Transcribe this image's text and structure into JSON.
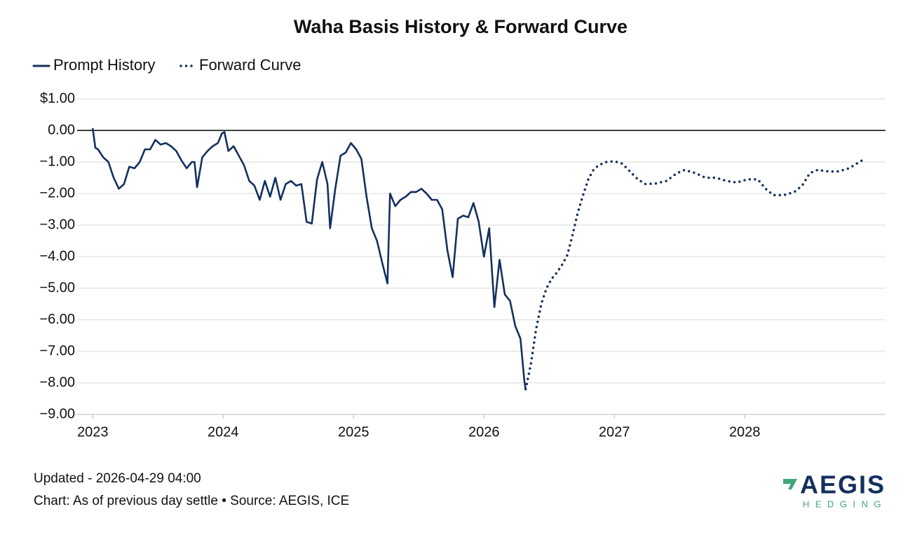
{
  "chart_data": {
    "type": "line",
    "title": "Waha Basis History & Forward Curve",
    "xlim": [
      2022.88,
      2029.08
    ],
    "xticks": [
      2023,
      2024,
      2025,
      2026,
      2027,
      2028
    ],
    "ylim": [
      -9,
      1
    ],
    "yticks": [
      {
        "value": -9,
        "label": "−9.00"
      },
      {
        "value": -8,
        "label": "−8.00"
      },
      {
        "value": -7,
        "label": "−7.00"
      },
      {
        "value": -6,
        "label": "−6.00"
      },
      {
        "value": -5,
        "label": "−5.00"
      },
      {
        "value": -4,
        "label": "−4.00"
      },
      {
        "value": -3,
        "label": "−3.00"
      },
      {
        "value": -2,
        "label": "−2.00"
      },
      {
        "value": -1,
        "label": "−1.00"
      },
      {
        "value": 0,
        "label": "0.00"
      },
      {
        "value": 1,
        "label": "$1.00"
      }
    ],
    "grid": true,
    "zero_line": true,
    "legend": "top-left",
    "series": [
      {
        "name": "Prompt History",
        "color": "#14305e",
        "style": "solid",
        "x": [
          2023.0,
          2023.02,
          2023.04,
          2023.08,
          2023.12,
          2023.16,
          2023.2,
          2023.24,
          2023.28,
          2023.32,
          2023.36,
          2023.4,
          2023.44,
          2023.48,
          2023.52,
          2023.56,
          2023.6,
          2023.64,
          2023.68,
          2023.72,
          2023.76,
          2023.78,
          2023.8,
          2023.84,
          2023.88,
          2023.92,
          2023.96,
          2023.99,
          2024.01,
          2024.04,
          2024.08,
          2024.12,
          2024.16,
          2024.2,
          2024.24,
          2024.28,
          2024.32,
          2024.36,
          2024.4,
          2024.44,
          2024.48,
          2024.52,
          2024.56,
          2024.6,
          2024.64,
          2024.68,
          2024.72,
          2024.76,
          2024.8,
          2024.82,
          2024.86,
          2024.9,
          2024.94,
          2024.98,
          2025.02,
          2025.06,
          2025.1,
          2025.14,
          2025.18,
          2025.22,
          2025.26,
          2025.28,
          2025.32,
          2025.36,
          2025.4,
          2025.44,
          2025.48,
          2025.52,
          2025.56,
          2025.6,
          2025.64,
          2025.68,
          2025.72,
          2025.76,
          2025.8,
          2025.84,
          2025.88,
          2025.92,
          2025.96,
          2026.0,
          2026.04,
          2026.08,
          2026.12,
          2026.16,
          2026.2,
          2026.24,
          2026.28,
          2026.31,
          2026.32
        ],
        "values": [
          0.05,
          -0.55,
          -0.6,
          -0.85,
          -1.0,
          -1.5,
          -1.85,
          -1.7,
          -1.15,
          -1.2,
          -1.0,
          -0.6,
          -0.6,
          -0.3,
          -0.45,
          -0.4,
          -0.5,
          -0.65,
          -0.95,
          -1.2,
          -1.0,
          -1.0,
          -1.8,
          -0.85,
          -0.65,
          -0.5,
          -0.4,
          -0.1,
          -0.05,
          -0.65,
          -0.5,
          -0.8,
          -1.1,
          -1.6,
          -1.75,
          -2.2,
          -1.6,
          -2.1,
          -1.5,
          -2.2,
          -1.7,
          -1.6,
          -1.75,
          -1.7,
          -2.9,
          -2.95,
          -1.55,
          -1.0,
          -1.7,
          -3.1,
          -1.85,
          -0.8,
          -0.7,
          -0.4,
          -0.6,
          -0.9,
          -2.1,
          -3.1,
          -3.5,
          -4.2,
          -4.85,
          -2.0,
          -2.4,
          -2.2,
          -2.1,
          -1.95,
          -1.95,
          -1.85,
          -2.0,
          -2.2,
          -2.2,
          -2.5,
          -3.8,
          -4.65,
          -2.8,
          -2.7,
          -2.75,
          -2.3,
          -2.9,
          -4.0,
          -3.1,
          -5.6,
          -4.1,
          -5.2,
          -5.4,
          -6.2,
          -6.6,
          -7.95,
          -8.2
        ]
      },
      {
        "name": "Forward Curve",
        "color": "#14305e",
        "style": "dotted",
        "x": [
          2026.32,
          2026.36,
          2026.4,
          2026.44,
          2026.48,
          2026.52,
          2026.56,
          2026.6,
          2026.64,
          2026.68,
          2026.72,
          2026.76,
          2026.8,
          2026.84,
          2026.88,
          2026.94,
          2027.0,
          2027.06,
          2027.12,
          2027.18,
          2027.24,
          2027.32,
          2027.4,
          2027.48,
          2027.54,
          2027.62,
          2027.7,
          2027.78,
          2027.86,
          2027.94,
          2028.02,
          2028.1,
          2028.16,
          2028.22,
          2028.3,
          2028.38,
          2028.44,
          2028.5,
          2028.56,
          2028.64,
          2028.72,
          2028.8,
          2028.88,
          2028.92
        ],
        "values": [
          -8.2,
          -7.4,
          -6.3,
          -5.5,
          -5.0,
          -4.7,
          -4.5,
          -4.25,
          -3.95,
          -3.3,
          -2.6,
          -2.05,
          -1.55,
          -1.25,
          -1.1,
          -1.0,
          -0.98,
          -1.05,
          -1.3,
          -1.55,
          -1.7,
          -1.68,
          -1.6,
          -1.35,
          -1.25,
          -1.35,
          -1.5,
          -1.5,
          -1.6,
          -1.65,
          -1.55,
          -1.55,
          -1.85,
          -2.05,
          -2.05,
          -1.95,
          -1.75,
          -1.35,
          -1.25,
          -1.3,
          -1.3,
          -1.2,
          -1.0,
          -0.9
        ]
      }
    ]
  },
  "footer": {
    "updated": "Updated - 2026-04-29 04:00",
    "source": "Chart: As of previous day settle • Source: AEGIS, ICE"
  },
  "logo": {
    "name": "AEGIS",
    "sub": "HEDGING"
  }
}
